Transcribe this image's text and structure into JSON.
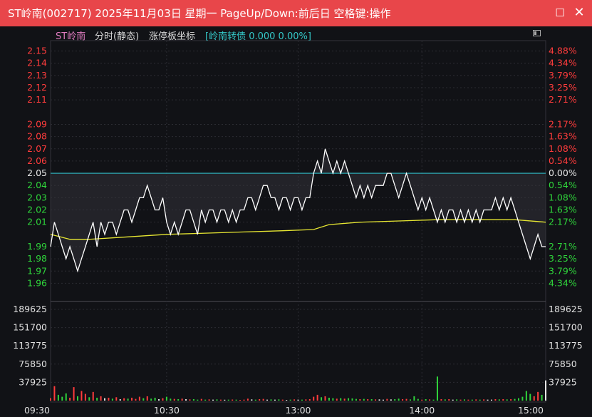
{
  "window": {
    "title": "ST岭南(002717) 2025年11月03日 星期一 PageUp/Down:前后日 空格键:操作",
    "maximize_icon": "maximize-icon",
    "close_icon": "close-icon"
  },
  "header": {
    "stock_name": "ST岭南",
    "mode": "分时(静态)",
    "scale_mode": "涨停板坐标",
    "bond_info": "[岭南转债 0.000 0.00%]"
  },
  "colors": {
    "up": "#ff3c3c",
    "down": "#2fd43b",
    "flat": "#e6e6e6",
    "price_line": "#ffffff",
    "avg_line": "#e6e632",
    "prev_close_line": "#2fbfc9",
    "grid": "#2c2c33"
  },
  "chart_data": {
    "type": "line",
    "prev_close": 2.05,
    "price_ticks": [
      "2.15",
      "2.14",
      "2.13",
      "2.12",
      "2.11",
      "2.09",
      "2.08",
      "2.07",
      "2.06",
      "2.05",
      "2.04",
      "2.03",
      "2.02",
      "2.01",
      "1.99",
      "1.98",
      "1.97",
      "1.96"
    ],
    "price_tick_values": [
      2.15,
      2.14,
      2.13,
      2.12,
      2.11,
      2.09,
      2.08,
      2.07,
      2.06,
      2.05,
      2.04,
      2.03,
      2.02,
      2.01,
      1.99,
      1.98,
      1.97,
      1.96
    ],
    "pct_ticks": [
      "4.88%",
      "4.34%",
      "3.79%",
      "3.25%",
      "2.71%",
      "2.17%",
      "1.63%",
      "1.08%",
      "0.54%",
      "0.00%",
      "0.54%",
      "1.08%",
      "1.63%",
      "2.17%",
      "2.71%",
      "3.25%",
      "3.79%",
      "4.34%"
    ],
    "volume_ticks": [
      "189625",
      "151700",
      "113775",
      "75850",
      "37925"
    ],
    "volume_tick_values": [
      189625,
      151700,
      113775,
      75850,
      37925
    ],
    "time_labels": [
      "09:30",
      "10:30",
      "13:00",
      "14:00",
      "15:00"
    ],
    "price_series": [
      [
        0,
        1.99
      ],
      [
        1,
        2.01
      ],
      [
        2,
        2.0
      ],
      [
        3,
        1.99
      ],
      [
        4,
        1.98
      ],
      [
        5,
        1.99
      ],
      [
        6,
        1.98
      ],
      [
        7,
        1.97
      ],
      [
        8,
        1.98
      ],
      [
        9,
        1.99
      ],
      [
        10,
        2.0
      ],
      [
        11,
        2.01
      ],
      [
        12,
        1.99
      ],
      [
        13,
        2.01
      ],
      [
        14,
        2.0
      ],
      [
        15,
        2.01
      ],
      [
        16,
        2.01
      ],
      [
        17,
        2.0
      ],
      [
        18,
        2.01
      ],
      [
        19,
        2.02
      ],
      [
        20,
        2.02
      ],
      [
        21,
        2.01
      ],
      [
        22,
        2.02
      ],
      [
        23,
        2.03
      ],
      [
        24,
        2.03
      ],
      [
        25,
        2.04
      ],
      [
        26,
        2.03
      ],
      [
        27,
        2.02
      ],
      [
        28,
        2.02
      ],
      [
        29,
        2.03
      ],
      [
        30,
        2.01
      ],
      [
        31,
        2.0
      ],
      [
        32,
        2.01
      ],
      [
        33,
        2.0
      ],
      [
        34,
        2.01
      ],
      [
        35,
        2.02
      ],
      [
        36,
        2.02
      ],
      [
        37,
        2.01
      ],
      [
        38,
        2.0
      ],
      [
        39,
        2.02
      ],
      [
        40,
        2.01
      ],
      [
        41,
        2.02
      ],
      [
        42,
        2.02
      ],
      [
        43,
        2.01
      ],
      [
        44,
        2.02
      ],
      [
        45,
        2.02
      ],
      [
        46,
        2.01
      ],
      [
        47,
        2.02
      ],
      [
        48,
        2.01
      ],
      [
        49,
        2.02
      ],
      [
        50,
        2.02
      ],
      [
        51,
        2.03
      ],
      [
        52,
        2.03
      ],
      [
        53,
        2.02
      ],
      [
        54,
        2.03
      ],
      [
        55,
        2.04
      ],
      [
        56,
        2.04
      ],
      [
        57,
        2.03
      ],
      [
        58,
        2.03
      ],
      [
        59,
        2.02
      ],
      [
        60,
        2.03
      ],
      [
        61,
        2.03
      ],
      [
        62,
        2.02
      ],
      [
        63,
        2.03
      ],
      [
        64,
        2.03
      ],
      [
        65,
        2.02
      ],
      [
        66,
        2.03
      ],
      [
        67,
        2.03
      ],
      [
        68,
        2.05
      ],
      [
        69,
        2.06
      ],
      [
        70,
        2.05
      ],
      [
        71,
        2.07
      ],
      [
        72,
        2.06
      ],
      [
        73,
        2.05
      ],
      [
        74,
        2.06
      ],
      [
        75,
        2.05
      ],
      [
        76,
        2.06
      ],
      [
        77,
        2.05
      ],
      [
        78,
        2.04
      ],
      [
        79,
        2.03
      ],
      [
        80,
        2.04
      ],
      [
        81,
        2.03
      ],
      [
        82,
        2.04
      ],
      [
        83,
        2.03
      ],
      [
        84,
        2.04
      ],
      [
        85,
        2.04
      ],
      [
        86,
        2.04
      ],
      [
        87,
        2.05
      ],
      [
        88,
        2.05
      ],
      [
        89,
        2.04
      ],
      [
        90,
        2.03
      ],
      [
        91,
        2.04
      ],
      [
        92,
        2.05
      ],
      [
        93,
        2.04
      ],
      [
        94,
        2.03
      ],
      [
        95,
        2.02
      ],
      [
        96,
        2.03
      ],
      [
        97,
        2.02
      ],
      [
        98,
        2.03
      ],
      [
        99,
        2.02
      ],
      [
        100,
        2.01
      ],
      [
        101,
        2.02
      ],
      [
        102,
        2.01
      ],
      [
        103,
        2.02
      ],
      [
        104,
        2.02
      ],
      [
        105,
        2.01
      ],
      [
        106,
        2.02
      ],
      [
        107,
        2.01
      ],
      [
        108,
        2.02
      ],
      [
        109,
        2.01
      ],
      [
        110,
        2.02
      ],
      [
        111,
        2.01
      ],
      [
        112,
        2.02
      ],
      [
        113,
        2.02
      ],
      [
        114,
        2.02
      ],
      [
        115,
        2.03
      ],
      [
        116,
        2.02
      ],
      [
        117,
        2.03
      ],
      [
        118,
        2.02
      ],
      [
        119,
        2.03
      ],
      [
        120,
        2.02
      ],
      [
        121,
        2.01
      ],
      [
        122,
        2.0
      ],
      [
        123,
        1.99
      ],
      [
        124,
        1.98
      ],
      [
        125,
        1.99
      ],
      [
        126,
        2.0
      ],
      [
        127,
        1.99
      ],
      [
        128,
        1.99
      ]
    ],
    "avg_series": [
      [
        0,
        2.0
      ],
      [
        5,
        1.996
      ],
      [
        10,
        1.996
      ],
      [
        20,
        1.998
      ],
      [
        30,
        2.0
      ],
      [
        40,
        2.001
      ],
      [
        50,
        2.002
      ],
      [
        60,
        2.003
      ],
      [
        68,
        2.004
      ],
      [
        72,
        2.008
      ],
      [
        80,
        2.01
      ],
      [
        90,
        2.011
      ],
      [
        100,
        2.012
      ],
      [
        110,
        2.012
      ],
      [
        120,
        2.012
      ],
      [
        128,
        2.01
      ]
    ],
    "volume_series": [
      [
        0,
        5000,
        "up"
      ],
      [
        1,
        30000,
        "up"
      ],
      [
        2,
        12000,
        "down"
      ],
      [
        3,
        8000,
        "down"
      ],
      [
        4,
        15000,
        "down"
      ],
      [
        5,
        6000,
        "up"
      ],
      [
        6,
        28000,
        "up"
      ],
      [
        7,
        9000,
        "down"
      ],
      [
        8,
        20000,
        "up"
      ],
      [
        9,
        14000,
        "up"
      ],
      [
        10,
        7000,
        "down"
      ],
      [
        11,
        18000,
        "up"
      ],
      [
        12,
        6000,
        "down"
      ],
      [
        13,
        9000,
        "up"
      ],
      [
        14,
        5000,
        "flat"
      ],
      [
        15,
        6000,
        "up"
      ],
      [
        16,
        4000,
        "down"
      ],
      [
        17,
        7000,
        "up"
      ],
      [
        18,
        3000,
        "flat"
      ],
      [
        19,
        5000,
        "up"
      ],
      [
        20,
        4000,
        "down"
      ],
      [
        21,
        6000,
        "up"
      ],
      [
        22,
        3500,
        "up"
      ],
      [
        23,
        8000,
        "up"
      ],
      [
        24,
        5000,
        "down"
      ],
      [
        25,
        9000,
        "up"
      ],
      [
        26,
        4000,
        "down"
      ],
      [
        27,
        6000,
        "down"
      ],
      [
        28,
        3000,
        "flat"
      ],
      [
        29,
        5000,
        "up"
      ],
      [
        30,
        8000,
        "down"
      ],
      [
        31,
        4000,
        "down"
      ],
      [
        32,
        3500,
        "up"
      ],
      [
        33,
        3000,
        "down"
      ],
      [
        34,
        4000,
        "up"
      ],
      [
        35,
        3000,
        "flat"
      ],
      [
        36,
        2500,
        "up"
      ],
      [
        37,
        3000,
        "down"
      ],
      [
        38,
        2000,
        "down"
      ],
      [
        39,
        3500,
        "up"
      ],
      [
        40,
        2000,
        "down"
      ],
      [
        41,
        2500,
        "up"
      ],
      [
        42,
        2000,
        "flat"
      ],
      [
        43,
        2500,
        "down"
      ],
      [
        44,
        2000,
        "up"
      ],
      [
        45,
        1800,
        "flat"
      ],
      [
        46,
        2000,
        "down"
      ],
      [
        47,
        2200,
        "up"
      ],
      [
        48,
        2000,
        "down"
      ],
      [
        49,
        1500,
        "up"
      ],
      [
        50,
        2000,
        "up"
      ],
      [
        51,
        4000,
        "up"
      ],
      [
        52,
        2500,
        "flat"
      ],
      [
        53,
        2000,
        "down"
      ],
      [
        54,
        3000,
        "up"
      ],
      [
        55,
        3500,
        "up"
      ],
      [
        56,
        2000,
        "flat"
      ],
      [
        57,
        2500,
        "down"
      ],
      [
        58,
        2000,
        "flat"
      ],
      [
        59,
        2500,
        "down"
      ],
      [
        60,
        2000,
        "up"
      ],
      [
        61,
        1500,
        "flat"
      ],
      [
        62,
        2000,
        "down"
      ],
      [
        63,
        2500,
        "up"
      ],
      [
        64,
        2000,
        "flat"
      ],
      [
        65,
        2000,
        "down"
      ],
      [
        66,
        2500,
        "up"
      ],
      [
        67,
        3000,
        "up"
      ],
      [
        68,
        8000,
        "up"
      ],
      [
        69,
        12000,
        "up"
      ],
      [
        70,
        7000,
        "down"
      ],
      [
        71,
        9000,
        "up"
      ],
      [
        72,
        6000,
        "down"
      ],
      [
        73,
        5000,
        "down"
      ],
      [
        74,
        4000,
        "up"
      ],
      [
        75,
        5000,
        "down"
      ],
      [
        76,
        4000,
        "up"
      ],
      [
        77,
        5000,
        "down"
      ],
      [
        78,
        4500,
        "down"
      ],
      [
        79,
        3500,
        "down"
      ],
      [
        80,
        3000,
        "up"
      ],
      [
        81,
        3500,
        "down"
      ],
      [
        82,
        3000,
        "up"
      ],
      [
        83,
        3000,
        "down"
      ],
      [
        84,
        2500,
        "up"
      ],
      [
        85,
        2500,
        "flat"
      ],
      [
        86,
        2000,
        "flat"
      ],
      [
        87,
        3500,
        "up"
      ],
      [
        88,
        2500,
        "flat"
      ],
      [
        89,
        3000,
        "down"
      ],
      [
        90,
        4000,
        "down"
      ],
      [
        91,
        3000,
        "up"
      ],
      [
        92,
        3500,
        "up"
      ],
      [
        93,
        2500,
        "down"
      ],
      [
        94,
        9000,
        "down"
      ],
      [
        95,
        3500,
        "down"
      ],
      [
        96,
        2000,
        "up"
      ],
      [
        97,
        3000,
        "down"
      ],
      [
        98,
        2500,
        "up"
      ],
      [
        99,
        2000,
        "down"
      ],
      [
        100,
        50000,
        "down"
      ],
      [
        101,
        3000,
        "up"
      ],
      [
        102,
        2500,
        "down"
      ],
      [
        103,
        3000,
        "up"
      ],
      [
        104,
        2000,
        "flat"
      ],
      [
        105,
        2500,
        "down"
      ],
      [
        106,
        2000,
        "up"
      ],
      [
        107,
        2500,
        "down"
      ],
      [
        108,
        2000,
        "up"
      ],
      [
        109,
        2000,
        "down"
      ],
      [
        110,
        2500,
        "up"
      ],
      [
        111,
        2000,
        "down"
      ],
      [
        112,
        2500,
        "up"
      ],
      [
        113,
        2000,
        "flat"
      ],
      [
        114,
        2000,
        "flat"
      ],
      [
        115,
        3000,
        "up"
      ],
      [
        116,
        2500,
        "down"
      ],
      [
        117,
        3000,
        "up"
      ],
      [
        118,
        2500,
        "down"
      ],
      [
        119,
        3000,
        "up"
      ],
      [
        120,
        3500,
        "down"
      ],
      [
        121,
        5000,
        "down"
      ],
      [
        122,
        8000,
        "down"
      ],
      [
        123,
        20000,
        "down"
      ],
      [
        124,
        14000,
        "down"
      ],
      [
        125,
        9000,
        "up"
      ],
      [
        126,
        18000,
        "up"
      ],
      [
        127,
        12000,
        "down"
      ],
      [
        128,
        42000,
        "flat"
      ]
    ]
  }
}
